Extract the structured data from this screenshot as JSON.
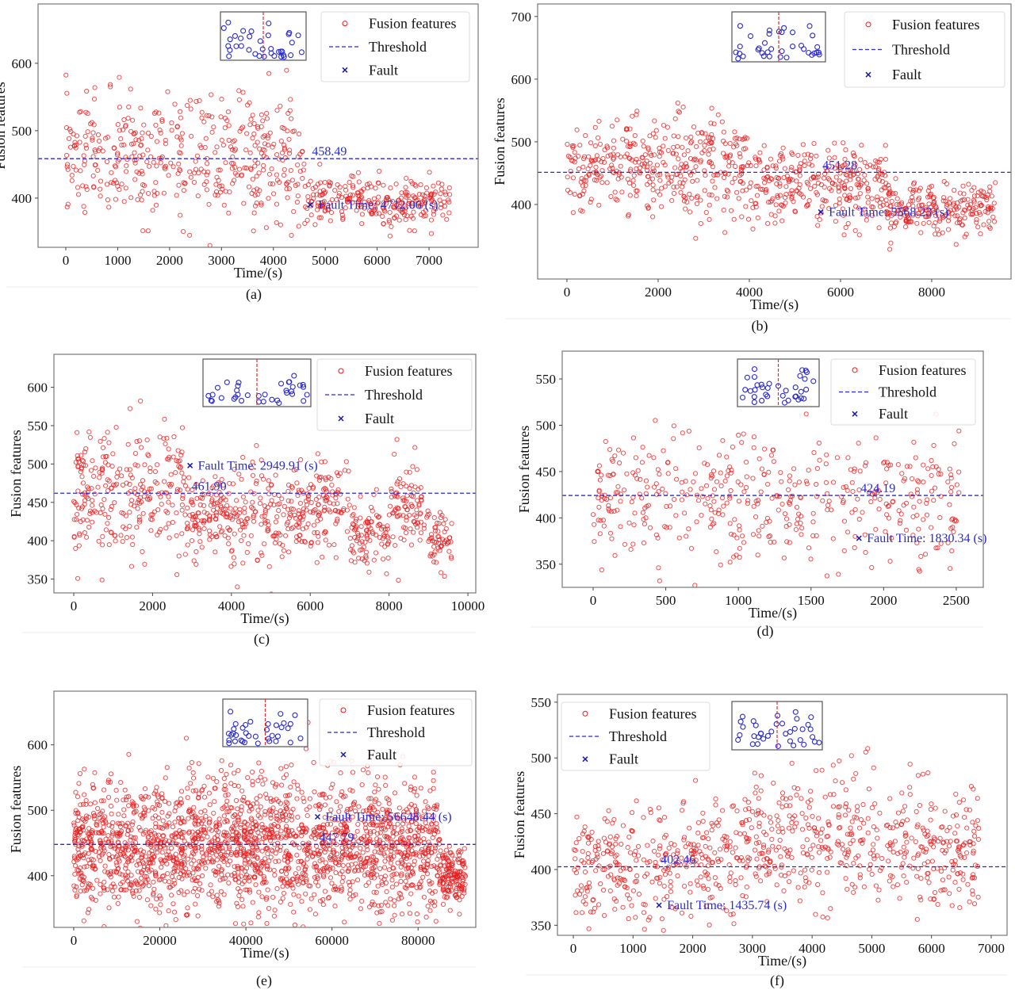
{
  "chart_data": [
    {
      "panel": "(a)",
      "type": "scatter",
      "xlabel": "Time/(s)",
      "ylabel": "Fusion features",
      "xlim": [
        -535,
        7947
      ],
      "ylim": [
        327,
        688
      ],
      "xticks": [
        0,
        1000,
        2000,
        3000,
        4000,
        5000,
        6000,
        7000
      ],
      "yticks": [
        400,
        500,
        600
      ],
      "threshold": 458.49,
      "threshold_text": "458.49",
      "fault_time": 4712.06,
      "fault_value": 390,
      "fault_text": "Fault Time: 4712.06 (s)",
      "segments": [
        {
          "x": [
            0,
            4600
          ],
          "mean": 460,
          "sd": 45
        },
        {
          "x": [
            4600,
            7400
          ],
          "mean": 395,
          "sd": 18
        }
      ],
      "legend": [
        "Fusion features",
        "Threshold",
        "Fault"
      ],
      "legend_position": "top-right",
      "grid": false
    },
    {
      "panel": "(b)",
      "type": "scatter",
      "xlabel": "Time/(s)",
      "ylabel": "Fusion features",
      "xlim": [
        -643,
        9740
      ],
      "ylim": [
        281,
        720
      ],
      "xticks": [
        0,
        2000,
        4000,
        6000,
        8000
      ],
      "yticks": [
        400,
        500,
        600,
        700
      ],
      "threshold": 451.28,
      "threshold_text": "451.28",
      "fault_time": 5568.23,
      "fault_value": 388,
      "fault_text": "Fault Time: 5568.23 (s)",
      "segments": [
        {
          "x": [
            0,
            4000
          ],
          "mean": 460,
          "sd": 40
        },
        {
          "x": [
            4000,
            7000
          ],
          "mean": 430,
          "sd": 30
        },
        {
          "x": [
            7000,
            9400
          ],
          "mean": 395,
          "sd": 20
        }
      ],
      "legend": [
        "Fusion features",
        "Threshold",
        "Fault"
      ],
      "legend_position": "top-right",
      "grid": false
    },
    {
      "panel": "(c)",
      "type": "scatter",
      "xlabel": "Time/(s)",
      "ylabel": "Fusion features",
      "xlim": [
        -503,
        10200
      ],
      "ylim": [
        332,
        643
      ],
      "xticks": [
        0,
        2000,
        4000,
        6000,
        8000,
        10000
      ],
      "yticks": [
        350,
        400,
        450,
        500,
        550,
        600
      ],
      "threshold": 461.9,
      "threshold_text": "461.90",
      "fault_time": 2949.91,
      "fault_value": 498,
      "fault_text": "Fault Time: 2949.91 (s)",
      "segments": [
        {
          "x": [
            0,
            2800
          ],
          "mean": 460,
          "sd": 45
        },
        {
          "x": [
            2800,
            6000
          ],
          "mean": 430,
          "sd": 30
        },
        {
          "x": [
            6000,
            7000
          ],
          "mean": 450,
          "sd": 30
        },
        {
          "x": [
            7000,
            8000
          ],
          "mean": 410,
          "sd": 20
        },
        {
          "x": [
            8000,
            9000
          ],
          "mean": 450,
          "sd": 30
        },
        {
          "x": [
            9000,
            9600
          ],
          "mean": 400,
          "sd": 20
        }
      ],
      "legend": [
        "Fusion features",
        "Threshold",
        "Fault"
      ],
      "legend_position": "top-right",
      "grid": false
    },
    {
      "panel": "(d)",
      "type": "scatter",
      "xlabel": "Time/(s)",
      "ylabel": "Fusion features",
      "xlim": [
        -213,
        2686
      ],
      "ylim": [
        325,
        580
      ],
      "xticks": [
        0,
        500,
        1000,
        1500,
        2000,
        2500
      ],
      "yticks": [
        350,
        400,
        450,
        500,
        550
      ],
      "threshold": 424.19,
      "threshold_text": "424.19",
      "fault_time": 1830.34,
      "fault_value": 378,
      "fault_text": "Fault Time: 1830.34 (s)",
      "segments": [
        {
          "x": [
            0,
            2520
          ],
          "mean": 420,
          "sd": 35
        }
      ],
      "legend": [
        "Fusion features",
        "Threshold",
        "Fault"
      ],
      "legend_position": "top-right",
      "grid": false
    },
    {
      "panel": "(e)",
      "type": "scatter",
      "xlabel": "Time/(s)",
      "ylabel": "Fusion features",
      "xlim": [
        -4600,
        93400
      ],
      "ylim": [
        321,
        682
      ],
      "xticks": [
        0,
        20000,
        40000,
        60000,
        80000
      ],
      "yticks": [
        400,
        500,
        600
      ],
      "threshold": 447.79,
      "threshold_text": "447.79",
      "fault_time": 56648.44,
      "fault_value": 490,
      "fault_text": "Fault Time: 56648.44 (s)",
      "segments": [
        {
          "x": [
            0,
            85000
          ],
          "mean": 445,
          "sd": 50
        },
        {
          "x": [
            85000,
            91000
          ],
          "mean": 400,
          "sd": 20
        }
      ],
      "legend": [
        "Fusion features",
        "Threshold",
        "Fault"
      ],
      "legend_position": "top-right",
      "grid": false
    },
    {
      "panel": "(f)",
      "type": "scatter",
      "xlabel": "Time/(s)",
      "ylabel": "Fusion features",
      "xlim": [
        -266,
        7266
      ],
      "ylim": [
        341,
        557
      ],
      "xticks": [
        0,
        1000,
        2000,
        3000,
        4000,
        5000,
        6000,
        7000
      ],
      "yticks": [
        350,
        400,
        450,
        500,
        550
      ],
      "threshold": 402.46,
      "threshold_text": "402.46",
      "fault_time": 1435.74,
      "fault_value": 368,
      "fault_text": "Fault Time: 1435.74 (s)",
      "segments": [
        {
          "x": [
            0,
            1500
          ],
          "mean": 400,
          "sd": 25
        },
        {
          "x": [
            1500,
            3000
          ],
          "mean": 410,
          "sd": 25
        },
        {
          "x": [
            3000,
            5000
          ],
          "mean": 430,
          "sd": 30
        },
        {
          "x": [
            5000,
            6800
          ],
          "mean": 420,
          "sd": 30
        }
      ],
      "legend": [
        "Fusion features",
        "Threshold",
        "Fault"
      ],
      "legend_position": "top-left",
      "grid": false
    }
  ],
  "colors": {
    "points": "#e8191b",
    "threshold": "#2a2ad0",
    "fault": "#1a1aa8",
    "inset_points": "#2a2ad0",
    "inset_line": "#e03030"
  }
}
